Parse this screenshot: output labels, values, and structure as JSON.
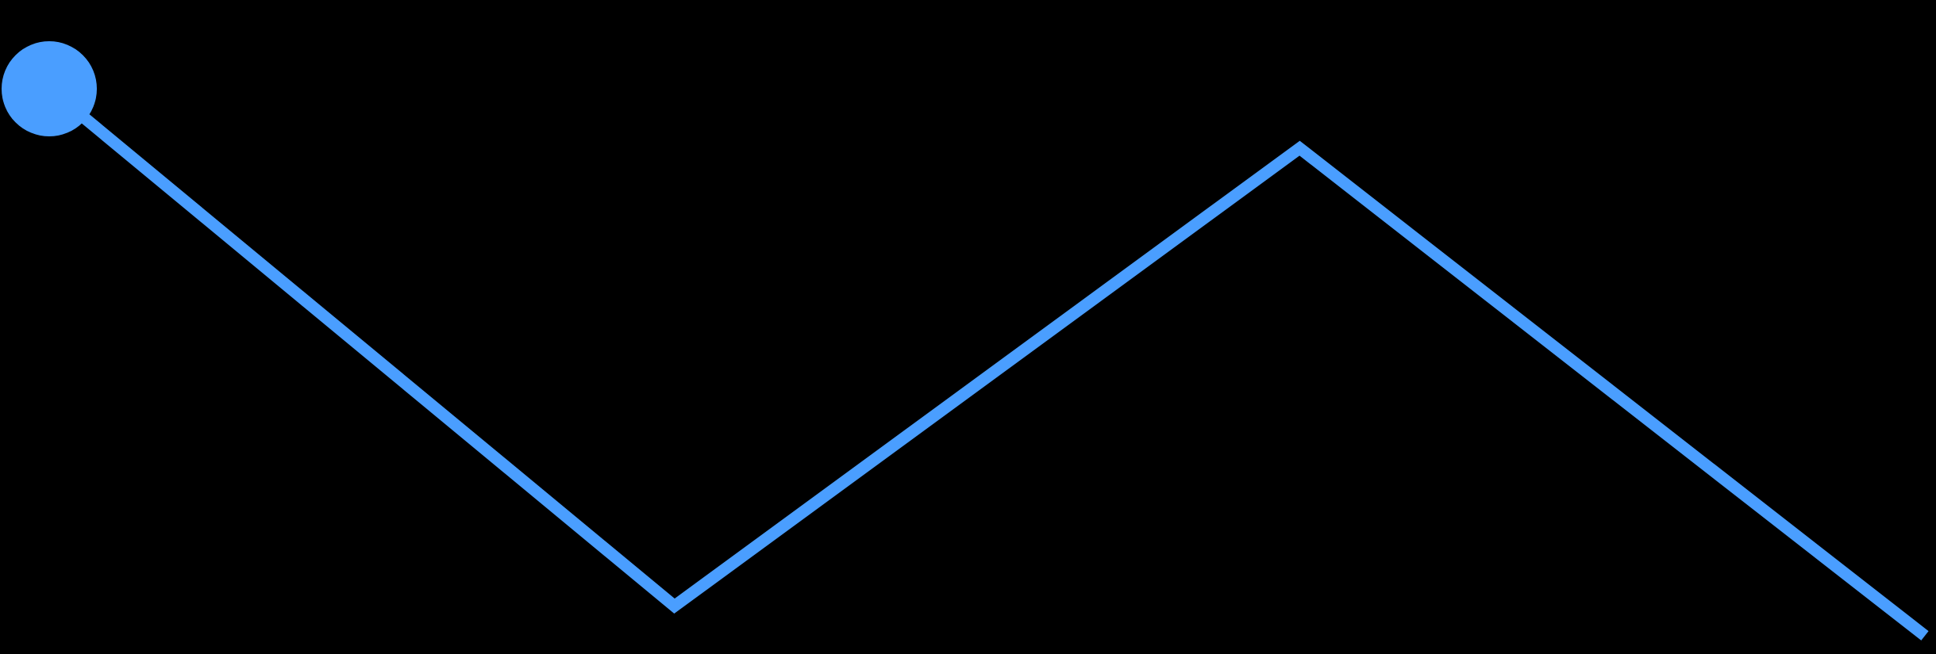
{
  "colors": {
    "background": "#000000",
    "line": "#4A9EFF"
  },
  "chart_data": {
    "type": "line",
    "title": "",
    "xlabel": "",
    "ylabel": "",
    "grid": false,
    "legend": "none",
    "x": [
      0,
      1,
      2,
      3
    ],
    "series": [
      {
        "values": [
          0.92,
          0.05,
          0.82,
          0.0
        ],
        "color": "#4A9EFF",
        "start_marker": true
      }
    ],
    "ylim": [
      0,
      1
    ]
  }
}
